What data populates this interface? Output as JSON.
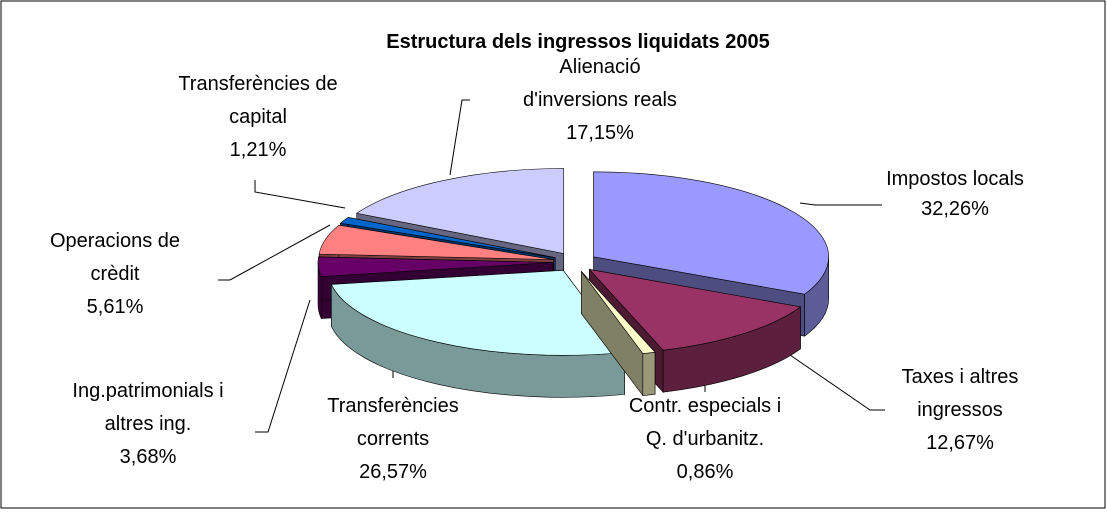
{
  "chart_data": {
    "type": "pie3d",
    "title": "Estructura dels ingressos liquidats 2005",
    "categories": [
      "Impostos locals",
      "Taxes i altres ingressos",
      "Contr. especials i Q. d'urbanitz.",
      "Transferències corrents",
      "Ing.patrimonials i altres ing.",
      "Operacions de crèdit",
      "Transferències de capital",
      "Alienació d'inversions reals"
    ],
    "values": [
      32.26,
      12.67,
      0.86,
      26.57,
      3.68,
      5.61,
      1.21,
      17.15
    ],
    "value_labels": [
      "32,26%",
      "12,67%",
      "0,86%",
      "26,57%",
      "3,68%",
      "5,61%",
      "1,21%",
      "17,15%"
    ],
    "colors": [
      "#9999ff",
      "#993366",
      "#ffffcc",
      "#ccffff",
      "#660066",
      "#ff8080",
      "#0066cc",
      "#ccccff"
    ]
  }
}
